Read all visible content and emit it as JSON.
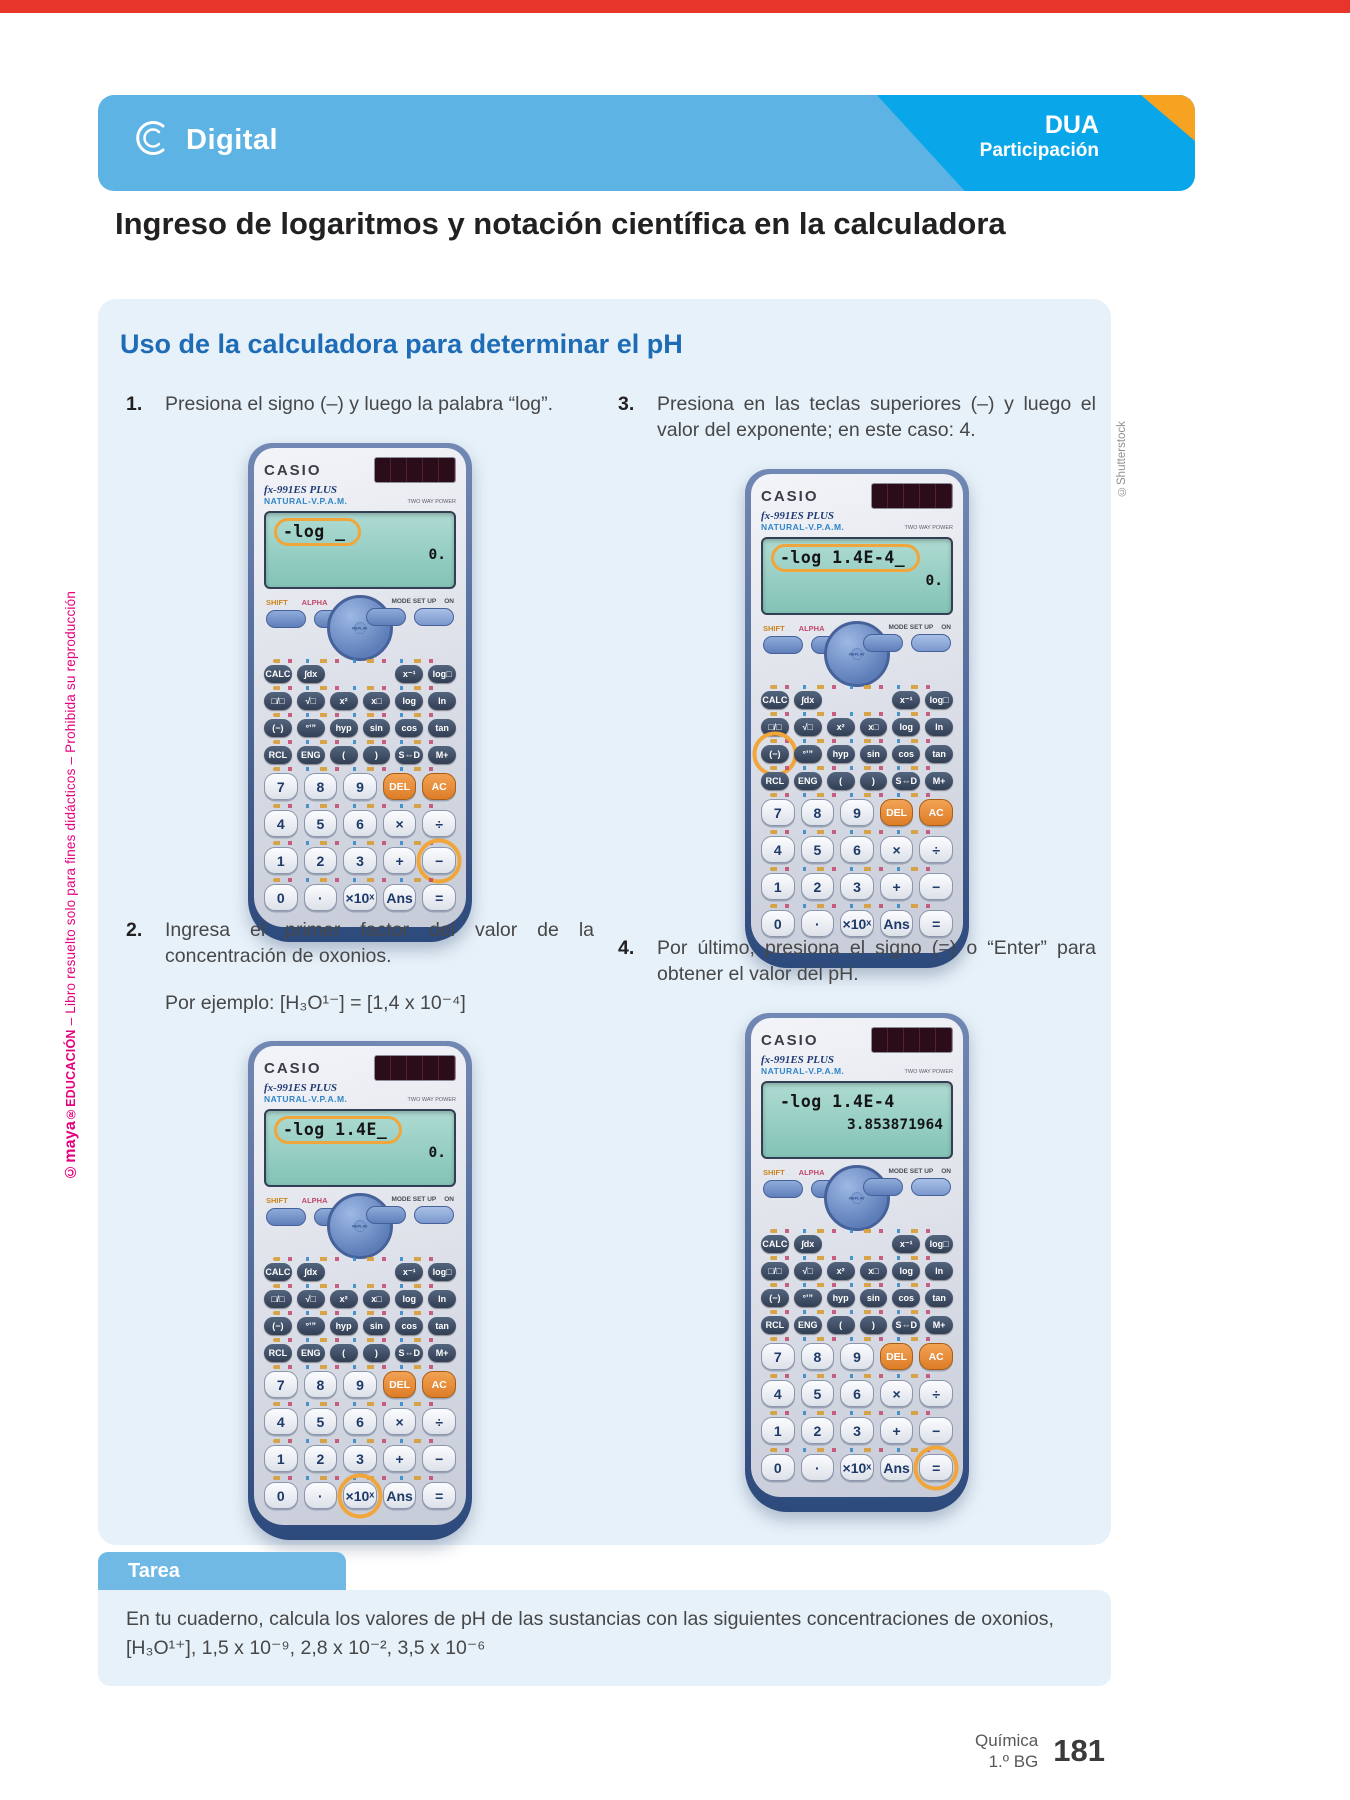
{
  "header": {
    "brand": "Digital",
    "badge_title": "DUA",
    "badge_subtitle": "Participación"
  },
  "title": "Ingreso de logaritmos y notación científica en la calculadora",
  "section_heading": "Uso de la calculadora para determinar el pH",
  "steps": [
    {
      "num": "1.",
      "text": "Presiona el signo (–) y luego la palabra “log”."
    },
    {
      "num": "2.",
      "text": "Ingresa el primer factor del valor de la concentración de oxonios.",
      "example": "Por ejemplo: [H₃O¹⁻] = [1,4 x 10⁻⁴]"
    },
    {
      "num": "3.",
      "text": "Presiona en las teclas superiores (–) y luego el valor del exponente; en este caso: 4."
    },
    {
      "num": "4.",
      "text": "Por último, presiona el signo (=) o “Enter” para obtener el valor del pH."
    }
  ],
  "calculator": {
    "brand": "CASIO",
    "model": "fx-991ES PLUS",
    "tagline": "NATURAL-V.P.A.M.",
    "power_label": "TWO WAY POWER",
    "shift_label": "SHIFT",
    "alpha_label": "ALPHA",
    "mode_label": "MODE SET UP",
    "on_label": "ON",
    "replay_label": "REPLAY",
    "function_keys": [
      [
        "CALC",
        "∫dx",
        "x⁻¹",
        "log□"
      ],
      [
        "□/□",
        "√□",
        "x²",
        "x□",
        "log",
        "ln"
      ],
      [
        "(−)",
        "°’”",
        "hyp",
        "sin",
        "cos",
        "tan"
      ],
      [
        "RCL",
        "ENG",
        "(",
        ")",
        "S⇔D",
        "M+"
      ]
    ],
    "number_keys": [
      [
        "7",
        "8",
        "9",
        "DEL",
        "AC"
      ],
      [
        "4",
        "5",
        "6",
        "×",
        "÷"
      ],
      [
        "1",
        "2",
        "3",
        "+",
        "−"
      ],
      [
        "0",
        "·",
        "×10ˣ",
        "Ans",
        "="
      ]
    ],
    "accent_keys": [
      "DEL",
      "AC"
    ],
    "highlight_color": "#f0a63a"
  },
  "calculators": [
    {
      "display_line1": "-log _",
      "display_line2": "0.",
      "display_highlight": true,
      "highlight_pad": "number",
      "highlight_row": 2,
      "highlight_col": 4
    },
    {
      "display_line1": "-log 1.4E_",
      "display_line2": "0.",
      "display_highlight": true,
      "highlight_pad": "number",
      "highlight_row": 3,
      "highlight_col": 2
    },
    {
      "display_line1": "-log 1.4E-4_",
      "display_line2": "0.",
      "display_highlight": true,
      "highlight_pad": "function",
      "highlight_row": 2,
      "highlight_col": 0
    },
    {
      "display_line1": "-log 1.4E-4",
      "display_line2": "3.853871964",
      "display_highlight": false,
      "highlight_pad": "number",
      "highlight_row": 3,
      "highlight_col": 4
    }
  ],
  "tarea": {
    "label": "Tarea",
    "line1": "En tu cuaderno, calcula los valores de pH de las sustancias con las siguientes concentraciones de oxonios,",
    "line2": "[H₃O¹⁺], 1,5 x 10⁻⁹, 2,8 x 10⁻², 3,5 x 10⁻⁶"
  },
  "footer": {
    "subject": "Química",
    "grade": "1.º BG",
    "page_number": "181"
  },
  "credits": {
    "left_brand": "©maya",
    "left_brand_suffix": "®EDUCACIÓN",
    "left_rest": " – Libro resuelto solo para fines didácticos – Prohibida su reproducción",
    "right": "©Shutterstock"
  }
}
